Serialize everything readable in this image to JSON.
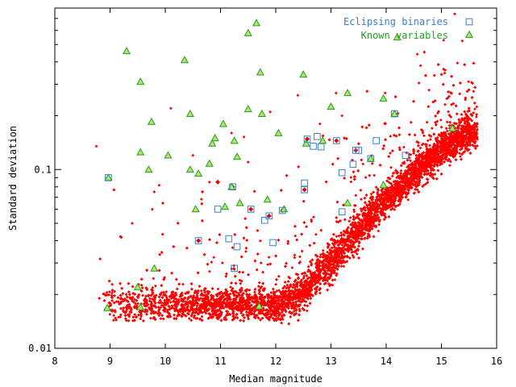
{
  "chart_data": {
    "type": "scatter",
    "title": "",
    "xlabel": "Median magnitude",
    "ylabel": "Standard deviation",
    "xlim": [
      8,
      16
    ],
    "ylim": [
      0.01,
      0.8
    ],
    "y_scale": "log",
    "x_ticks": [
      "8",
      "9",
      "10",
      "11",
      "12",
      "13",
      "14",
      "15",
      "16"
    ],
    "y_ticks": [
      {
        "value": 0.01,
        "label": "0.01"
      },
      {
        "value": 0.1,
        "label": "0.1"
      }
    ],
    "grid": false,
    "legend_position": "top-right",
    "colors": {
      "stars": "#ff0000",
      "eclipsing": "#3a80cc",
      "variables": "#22a022",
      "variables_fill": "#b6e46a"
    },
    "series": [
      {
        "name": "",
        "marker": "diamond",
        "color": "#ff0000",
        "trend": {
          "floor_sigma": 0.0175,
          "floor_mag_range": [
            8.8,
            12.1
          ],
          "knee_mag": 12.1,
          "points": [
            {
              "x": 12.1,
              "y": 0.0175
            },
            {
              "x": 12.5,
              "y": 0.021
            },
            {
              "x": 13.0,
              "y": 0.03
            },
            {
              "x": 13.5,
              "y": 0.045
            },
            {
              "x": 14.0,
              "y": 0.068
            },
            {
              "x": 14.5,
              "y": 0.095
            },
            {
              "x": 15.0,
              "y": 0.13
            },
            {
              "x": 15.5,
              "y": 0.165
            }
          ]
        },
        "outliers": [
          {
            "x": 8.75,
            "y": 0.135
          },
          {
            "x": 10.1,
            "y": 0.22
          },
          {
            "x": 10.8,
            "y": 0.085
          },
          {
            "x": 11.9,
            "y": 0.21
          },
          {
            "x": 12.4,
            "y": 0.26
          },
          {
            "x": 13.2,
            "y": 0.2
          },
          {
            "x": 9.4,
            "y": 0.05
          },
          {
            "x": 10.5,
            "y": 0.12
          },
          {
            "x": 11.2,
            "y": 0.16
          },
          {
            "x": 12.8,
            "y": 0.18
          },
          {
            "x": 9.8,
            "y": 0.075
          },
          {
            "x": 11.5,
            "y": 0.11
          }
        ]
      },
      {
        "name": "Eclipsing binaries",
        "marker": "square",
        "color": "#3a80cc",
        "points": [
          {
            "x": 8.97,
            "y": 0.09
          },
          {
            "x": 10.6,
            "y": 0.04
          },
          {
            "x": 10.95,
            "y": 0.06
          },
          {
            "x": 11.15,
            "y": 0.041
          },
          {
            "x": 11.3,
            "y": 0.037
          },
          {
            "x": 11.25,
            "y": 0.028
          },
          {
            "x": 11.22,
            "y": 0.08
          },
          {
            "x": 11.55,
            "y": 0.06
          },
          {
            "x": 11.8,
            "y": 0.052
          },
          {
            "x": 11.88,
            "y": 0.055
          },
          {
            "x": 11.95,
            "y": 0.039
          },
          {
            "x": 12.12,
            "y": 0.059
          },
          {
            "x": 12.52,
            "y": 0.084
          },
          {
            "x": 12.52,
            "y": 0.077
          },
          {
            "x": 12.57,
            "y": 0.148
          },
          {
            "x": 12.68,
            "y": 0.135
          },
          {
            "x": 12.75,
            "y": 0.153
          },
          {
            "x": 12.82,
            "y": 0.134
          },
          {
            "x": 13.1,
            "y": 0.145
          },
          {
            "x": 13.2,
            "y": 0.058
          },
          {
            "x": 13.2,
            "y": 0.096
          },
          {
            "x": 13.4,
            "y": 0.107
          },
          {
            "x": 13.45,
            "y": 0.128
          },
          {
            "x": 13.5,
            "y": 0.128
          },
          {
            "x": 13.72,
            "y": 0.115
          },
          {
            "x": 13.82,
            "y": 0.145
          },
          {
            "x": 14.15,
            "y": 0.205
          },
          {
            "x": 14.35,
            "y": 0.12
          }
        ]
      },
      {
        "name": "Known variables",
        "marker": "triangle",
        "color": "#22a022",
        "points": [
          {
            "x": 8.97,
            "y": 0.09
          },
          {
            "x": 9.3,
            "y": 0.46
          },
          {
            "x": 9.55,
            "y": 0.31
          },
          {
            "x": 9.75,
            "y": 0.185
          },
          {
            "x": 9.55,
            "y": 0.125
          },
          {
            "x": 9.7,
            "y": 0.1
          },
          {
            "x": 10.05,
            "y": 0.12
          },
          {
            "x": 10.35,
            "y": 0.41
          },
          {
            "x": 10.45,
            "y": 0.205
          },
          {
            "x": 10.45,
            "y": 0.1
          },
          {
            "x": 10.6,
            "y": 0.095
          },
          {
            "x": 10.8,
            "y": 0.108
          },
          {
            "x": 10.55,
            "y": 0.06
          },
          {
            "x": 10.85,
            "y": 0.14
          },
          {
            "x": 10.9,
            "y": 0.15
          },
          {
            "x": 11.05,
            "y": 0.18
          },
          {
            "x": 11.25,
            "y": 0.145
          },
          {
            "x": 11.3,
            "y": 0.118
          },
          {
            "x": 11.2,
            "y": 0.08
          },
          {
            "x": 11.08,
            "y": 0.062
          },
          {
            "x": 11.35,
            "y": 0.065
          },
          {
            "x": 11.5,
            "y": 0.58
          },
          {
            "x": 11.65,
            "y": 0.66
          },
          {
            "x": 11.72,
            "y": 0.35
          },
          {
            "x": 11.5,
            "y": 0.218
          },
          {
            "x": 11.75,
            "y": 0.205
          },
          {
            "x": 11.85,
            "y": 0.068
          },
          {
            "x": 12.05,
            "y": 0.16
          },
          {
            "x": 12.15,
            "y": 0.06
          },
          {
            "x": 12.5,
            "y": 0.34
          },
          {
            "x": 12.55,
            "y": 0.14
          },
          {
            "x": 12.85,
            "y": 0.145
          },
          {
            "x": 13.0,
            "y": 0.225
          },
          {
            "x": 13.3,
            "y": 0.268
          },
          {
            "x": 13.72,
            "y": 0.115
          },
          {
            "x": 13.95,
            "y": 0.25
          },
          {
            "x": 14.15,
            "y": 0.205
          },
          {
            "x": 14.2,
            "y": 0.55
          },
          {
            "x": 15.2,
            "y": 0.17
          },
          {
            "x": 13.3,
            "y": 0.065
          },
          {
            "x": 9.8,
            "y": 0.028
          },
          {
            "x": 9.5,
            "y": 0.022
          },
          {
            "x": 8.95,
            "y": 0.0168
          },
          {
            "x": 9.55,
            "y": 0.017
          },
          {
            "x": 11.7,
            "y": 0.0172
          },
          {
            "x": 13.95,
            "y": 0.082
          }
        ]
      }
    ],
    "highlighted": [
      {
        "x": 10.95,
        "y": 0.085
      },
      {
        "x": 11.55,
        "y": 0.06
      },
      {
        "x": 13.1,
        "y": 0.145
      },
      {
        "x": 12.57,
        "y": 0.148
      },
      {
        "x": 12.52,
        "y": 0.077
      },
      {
        "x": 10.6,
        "y": 0.04
      },
      {
        "x": 11.22,
        "y": 0.08
      },
      {
        "x": 13.45,
        "y": 0.128
      },
      {
        "x": 12.12,
        "y": 0.059
      },
      {
        "x": 11.88,
        "y": 0.055
      }
    ]
  }
}
